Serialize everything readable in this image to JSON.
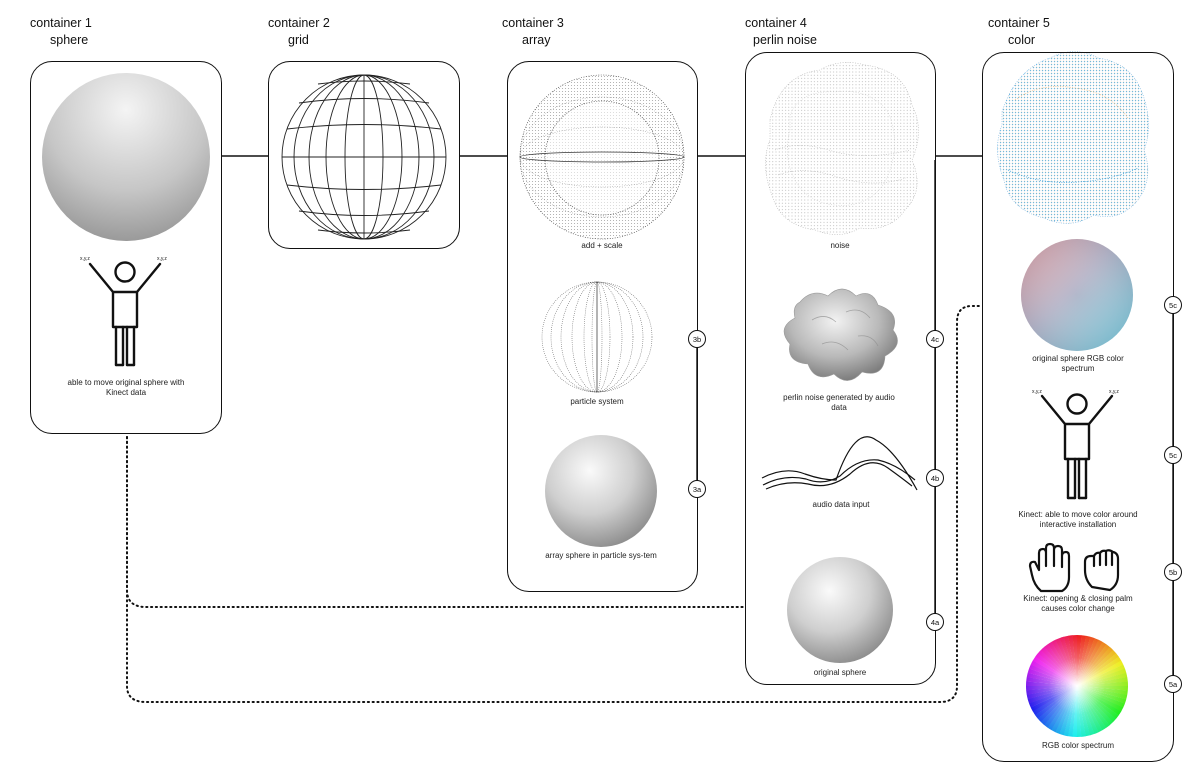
{
  "containers": [
    {
      "title": "container 1",
      "subtitle": "sphere"
    },
    {
      "title": "container 2",
      "subtitle": "grid"
    },
    {
      "title": "container 3",
      "subtitle": "array"
    },
    {
      "title": "container 4",
      "subtitle": "perlin noise"
    },
    {
      "title": "container 5",
      "subtitle": "color"
    }
  ],
  "captions": {
    "c1_kinect": "able to move original sphere with Kinect data",
    "c3_add_scale": "add + scale",
    "c3_particle": "particle system",
    "c3_array": "array sphere in particle sys-tem",
    "c4_noise": "noise",
    "c4_perlin": "perlin noise generated by audio data",
    "c4_audio": "audio data input",
    "c4_original": "original sphere",
    "c5_rgb_sphere": "original sphere RGB color spectrum",
    "c5_kinect_move": "Kinect: able to move color around interactive installation",
    "c5_palm": "Kinect: opening & closing palm causes color change",
    "c5_rgb": "RGB color spectrum"
  },
  "markers": {
    "m3b": "3b",
    "m3a": "3a",
    "m4c": "4c",
    "m4b": "4b",
    "m4a": "4a",
    "m5c1": "5c",
    "m5c2": "5c",
    "m5b": "5b",
    "m5a": "5a"
  },
  "figure_labels": {
    "xyz": "x,y,z"
  }
}
